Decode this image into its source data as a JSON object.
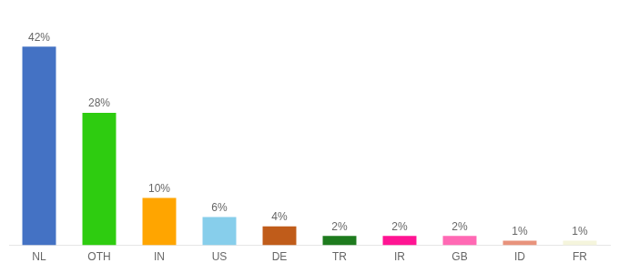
{
  "chart_data": {
    "type": "bar",
    "categories": [
      "NL",
      "OTH",
      "IN",
      "US",
      "DE",
      "TR",
      "IR",
      "GB",
      "ID",
      "FR"
    ],
    "values": [
      42,
      28,
      10,
      6,
      4,
      2,
      2,
      2,
      1,
      1
    ],
    "value_labels": [
      "42%",
      "28%",
      "10%",
      "6%",
      "4%",
      "2%",
      "2%",
      "2%",
      "1%",
      "1%"
    ],
    "colors": [
      "#4472C4",
      "#2ECC10",
      "#FFA500",
      "#87CEEB",
      "#C05C1A",
      "#1E7B1E",
      "#FF1493",
      "#FF69B4",
      "#E8937C",
      "#F5F5DC"
    ],
    "ylim": [
      0,
      48
    ],
    "grid": false,
    "data_labels": true,
    "tick_labels": "x"
  }
}
